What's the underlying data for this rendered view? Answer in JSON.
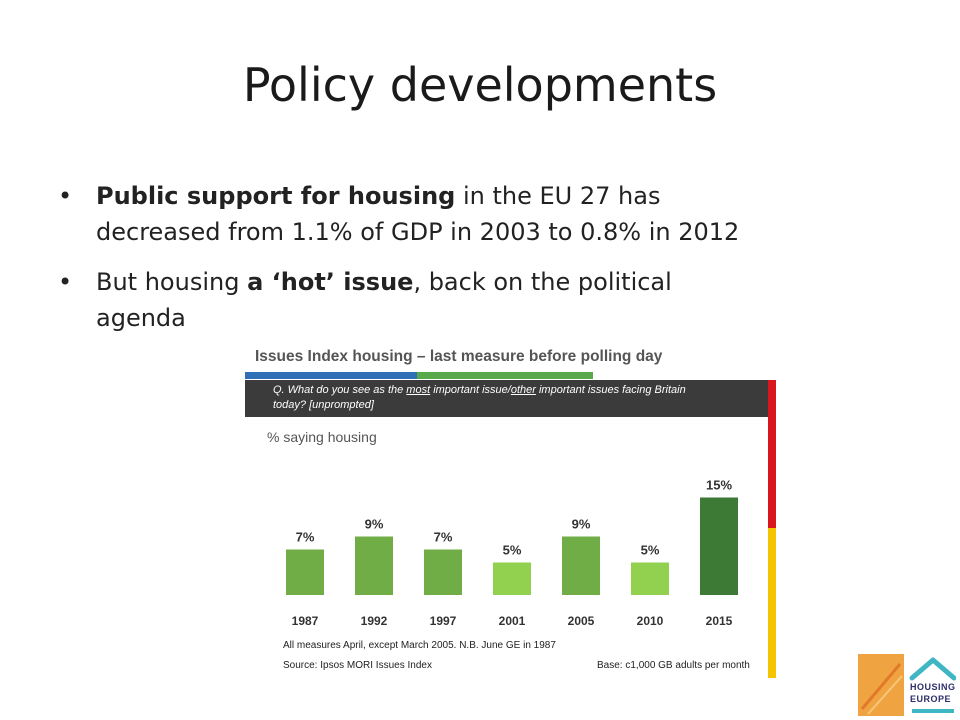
{
  "slide": {
    "title": "Policy developments",
    "bullets": [
      {
        "bold": "Public support for housing",
        "text_line1": " in the EU 27 has",
        "text_line2": "decreased from 1.1% of GDP in 2003 to 0.8% in 2012"
      },
      {
        "pre": "But housing ",
        "bold": "a ‘hot’ issue",
        "post": ", back on the political",
        "line2": "agenda"
      }
    ]
  },
  "chart_panel": {
    "title": "Issues Index housing – last measure before polling day",
    "question_pre": "Q. What do you see as the ",
    "question_most": "most",
    "question_mid": " important issue/",
    "question_other": "other",
    "question_post": " important issues facing Britain",
    "question_line2": "today? [unprompted]",
    "subtitle": "% saying housing",
    "footnote": "All measures April, except March 2005. N.B. June GE in 1987",
    "source": "Source:  Ipsos MORI Issues Index",
    "base": "Base: c1,000 GB adults per month",
    "colors": {
      "strip_blue": "#2f6fb5",
      "strip_green": "#59a84a",
      "question_bg": "#3b3b3b",
      "right_red": "#d9161e",
      "right_yellow": "#f5c400"
    }
  },
  "chart_data": {
    "type": "bar",
    "categories": [
      "1987",
      "1992",
      "1997",
      "2001",
      "2005",
      "2010",
      "2015"
    ],
    "values": [
      7,
      9,
      7,
      5,
      9,
      5,
      15
    ],
    "value_labels": [
      "7%",
      "9%",
      "7%",
      "5%",
      "9%",
      "5%",
      "15%"
    ],
    "bar_colors": [
      "#70ad47",
      "#70ad47",
      "#70ad47",
      "#92d050",
      "#70ad47",
      "#92d050",
      "#3d7a35"
    ],
    "ylim": [
      0,
      16
    ],
    "title": "Issues Index housing – last measure before polling day",
    "ylabel": "% saying housing",
    "xlabel": "",
    "grid": false
  },
  "logo": {
    "name_line1": "HOUSING",
    "name_line2": "EUROPE",
    "house_color": "#3fb6c4",
    "orange": "#f0a441"
  }
}
